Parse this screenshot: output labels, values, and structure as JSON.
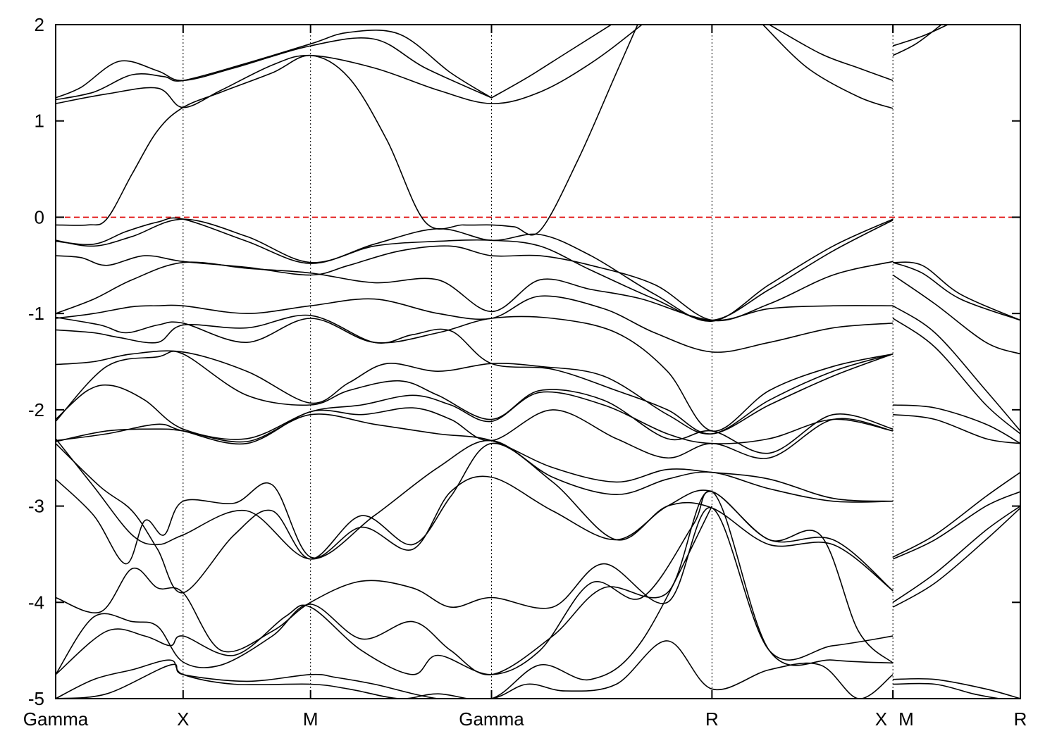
{
  "chart_data": {
    "type": "line",
    "title": "",
    "xlabel": "",
    "ylabel": "",
    "ylim": [
      -5,
      2
    ],
    "yticks": [
      "2",
      "1",
      "0",
      "-1",
      "-2",
      "-3",
      "-4",
      "-5"
    ],
    "ytick_values": [
      2,
      1,
      0,
      -1,
      -2,
      -3,
      -4,
      -5
    ],
    "kpath_labels": [
      "Gamma",
      "X",
      "M",
      "Gamma",
      "R",
      "X",
      "M",
      "R"
    ],
    "kpath_positions": [
      0,
      1,
      2,
      3.42,
      5.15,
      6.57,
      6.57,
      7.57
    ],
    "xlim": [
      0,
      7.57
    ],
    "path_break_after": "X",
    "fermi_level": 0,
    "fermi_color": "#e00000",
    "band_color": "#000000",
    "grid": false,
    "series": [
      {
        "x": [
          0,
          0.2,
          0.5,
          0.8,
          1.0,
          1.4,
          2.0,
          2.5,
          2.9,
          3.42
        ],
        "values": [
          1.24,
          1.35,
          1.62,
          1.52,
          1.42,
          1.55,
          1.78,
          1.85,
          1.55,
          1.24
        ]
      },
      {
        "x": [
          0,
          0.3,
          0.6,
          0.85,
          1.0,
          1.5,
          2.0,
          2.3,
          2.7,
          3.1,
          3.42
        ],
        "values": [
          1.22,
          1.3,
          1.48,
          1.46,
          1.42,
          1.6,
          1.8,
          1.92,
          1.9,
          1.5,
          1.24
        ]
      },
      {
        "x": [
          0,
          0.4,
          0.8,
          1.0,
          1.3,
          1.7,
          2.0,
          2.5,
          3.0,
          3.42,
          3.8,
          4.2,
          4.6,
          5.15
        ],
        "values": [
          1.18,
          1.28,
          1.34,
          1.14,
          1.32,
          1.58,
          1.68,
          1.55,
          1.32,
          1.18,
          1.3,
          1.6,
          2.0,
          2.6
        ]
      },
      {
        "x": [
          0,
          0.25,
          0.4,
          0.6,
          0.8,
          1.0,
          1.3,
          1.7,
          2.0,
          2.3,
          2.6,
          2.9,
          3.2,
          3.42,
          3.6,
          3.8,
          4.1,
          4.4,
          4.6
        ],
        "values": [
          -0.08,
          -0.08,
          -0.02,
          0.45,
          0.9,
          1.14,
          1.3,
          1.5,
          1.68,
          1.45,
          0.8,
          -0.05,
          -0.08,
          -0.08,
          -0.1,
          -0.14,
          0.6,
          1.5,
          2.1
        ]
      },
      {
        "x": [
          3.42,
          3.7,
          4.0,
          4.3,
          4.6
        ],
        "values": [
          1.24,
          1.45,
          1.7,
          1.95,
          2.2
        ]
      },
      {
        "x": [
          5.6,
          6.0,
          6.3,
          6.57
        ],
        "values": [
          2.0,
          1.7,
          1.55,
          1.42
        ]
      },
      {
        "x": [
          5.55,
          5.9,
          6.3,
          6.57
        ],
        "values": [
          2.0,
          1.55,
          1.25,
          1.13
        ]
      },
      {
        "x": [
          6.57,
          6.8,
          7.0
        ],
        "values": [
          1.78,
          1.88,
          2.0
        ]
      },
      {
        "x": [
          6.57,
          6.75,
          6.95
        ],
        "values": [
          1.68,
          1.8,
          2.0
        ]
      },
      {
        "x": [
          0,
          0.3,
          0.55,
          0.8,
          1.0,
          1.5,
          2.0,
          2.5,
          3.0,
          3.42,
          3.8,
          4.2,
          4.7,
          5.15,
          5.6,
          6.1,
          6.57
        ],
        "values": [
          -0.25,
          -0.28,
          -0.15,
          -0.05,
          -0.02,
          -0.25,
          -0.48,
          -0.28,
          -0.12,
          -0.24,
          -0.18,
          -0.4,
          -0.8,
          -1.08,
          -0.7,
          -0.3,
          -0.02
        ]
      },
      {
        "x": [
          0,
          0.3,
          0.6,
          1.0,
          1.5,
          2.0,
          2.5,
          3.0,
          3.42,
          3.8,
          4.2,
          4.7,
          5.15,
          5.6,
          6.1,
          6.57
        ],
        "values": [
          -0.24,
          -0.3,
          -0.2,
          -0.02,
          -0.2,
          -0.47,
          -0.3,
          -0.25,
          -0.24,
          -0.3,
          -0.55,
          -0.85,
          -1.07,
          -0.75,
          -0.35,
          -0.03
        ]
      },
      {
        "x": [
          0,
          0.2,
          0.4,
          0.7,
          1.0,
          1.5,
          2.0,
          2.3,
          2.7,
          3.1,
          3.42,
          3.8,
          4.2,
          4.7,
          5.15,
          5.6,
          6.1,
          6.57
        ],
        "values": [
          -0.4,
          -0.42,
          -0.5,
          -0.4,
          -0.46,
          -0.52,
          -0.6,
          -0.5,
          -0.35,
          -0.3,
          -0.4,
          -0.4,
          -0.5,
          -0.7,
          -1.07,
          -0.9,
          -0.6,
          -0.46
        ]
      },
      {
        "x": [
          0,
          0.3,
          0.6,
          1.0,
          1.5,
          2.0,
          2.5,
          3.0,
          3.42,
          3.8,
          4.2,
          4.6,
          5.15,
          5.6,
          6.1,
          6.57
        ],
        "values": [
          -1.0,
          -0.85,
          -0.65,
          -0.47,
          -0.53,
          -0.58,
          -0.68,
          -0.65,
          -0.98,
          -0.65,
          -0.75,
          -0.85,
          -1.07,
          -0.95,
          -0.92,
          -0.92
        ]
      },
      {
        "x": [
          0,
          0.3,
          0.6,
          0.8,
          1.0,
          1.5,
          2.0,
          2.5,
          3.0,
          3.42,
          3.8,
          4.3,
          4.7,
          5.15,
          5.6,
          6.1,
          6.57
        ],
        "values": [
          -1.05,
          -1.0,
          -0.93,
          -0.92,
          -0.92,
          -1.0,
          -0.92,
          -0.85,
          -1.0,
          -1.05,
          -0.82,
          -0.95,
          -1.2,
          -1.4,
          -1.3,
          -1.15,
          -1.1
        ]
      },
      {
        "x": [
          0,
          0.35,
          0.55,
          0.8,
          1.0,
          1.5,
          2.0,
          2.5,
          3.0,
          3.42,
          3.9,
          4.4,
          4.8,
          5.15,
          5.6,
          6.1,
          6.57
        ],
        "values": [
          -1.04,
          -1.12,
          -1.2,
          -1.12,
          -1.1,
          -1.3,
          -1.05,
          -1.3,
          -1.2,
          -1.05,
          -1.05,
          -1.2,
          -1.6,
          -2.22,
          -1.8,
          -1.55,
          -1.42
        ]
      },
      {
        "x": [
          0,
          0.3,
          0.5,
          0.8,
          1.0,
          1.5,
          2.0,
          2.5,
          2.8,
          3.1,
          3.42,
          3.9,
          4.4,
          4.8,
          5.15,
          5.6,
          6.1,
          6.57
        ],
        "values": [
          -1.17,
          -1.2,
          -1.25,
          -1.3,
          -1.12,
          -1.15,
          -1.02,
          -1.3,
          -1.22,
          -1.18,
          -1.52,
          -1.58,
          -1.8,
          -2.0,
          -2.25,
          -1.9,
          -1.6,
          -1.42
        ]
      },
      {
        "x": [
          0,
          0.3,
          0.6,
          1.0,
          1.5,
          2.0,
          2.3,
          2.6,
          3.0,
          3.42,
          3.8,
          4.3,
          4.8,
          5.15,
          5.6,
          6.1,
          6.57
        ],
        "values": [
          -1.53,
          -1.5,
          -1.42,
          -1.4,
          -1.6,
          -1.93,
          -1.72,
          -1.52,
          -1.6,
          -1.52,
          -1.55,
          -1.65,
          -2.05,
          -2.25,
          -1.95,
          -1.65,
          -1.42
        ]
      },
      {
        "x": [
          0,
          0.25,
          0.45,
          0.7,
          1.0,
          1.5,
          2.0,
          2.4,
          2.8,
          3.1,
          3.42,
          3.8,
          4.3,
          4.8,
          5.15,
          5.6,
          6.1,
          6.57
        ],
        "values": [
          -2.1,
          -1.8,
          -1.75,
          -1.9,
          -2.2,
          -2.3,
          -2.02,
          -1.95,
          -1.85,
          -1.95,
          -2.12,
          -1.82,
          -1.95,
          -2.25,
          -2.35,
          -2.3,
          -2.1,
          -2.22
        ]
      },
      {
        "x": [
          0,
          0.4,
          0.8,
          1.0,
          1.5,
          2.0,
          2.3,
          2.7,
          3.0,
          3.42,
          3.8,
          4.3,
          4.8,
          5.15,
          5.6,
          6.1,
          6.57
        ],
        "values": [
          -2.12,
          -1.55,
          -1.45,
          -1.42,
          -1.85,
          -1.95,
          -1.8,
          -1.7,
          -1.85,
          -2.1,
          -1.8,
          -1.9,
          -2.3,
          -2.22,
          -2.45,
          -2.05,
          -2.2
        ]
      },
      {
        "x": [
          0,
          0.4,
          0.8,
          1.0,
          1.5,
          2.0,
          2.4,
          2.8,
          3.1,
          3.42,
          3.9,
          4.4,
          4.8,
          5.15,
          5.6,
          6.1,
          6.57
        ],
        "values": [
          -2.32,
          -2.25,
          -2.15,
          -2.22,
          -2.35,
          -2.02,
          -2.05,
          -1.98,
          -2.1,
          -2.32,
          -2.0,
          -2.3,
          -2.5,
          -2.35,
          -2.5,
          -2.1,
          -2.22
        ]
      },
      {
        "x": [
          0,
          0.4,
          0.8,
          1.0,
          1.5,
          2.0,
          2.5,
          3.0,
          3.42,
          3.9,
          4.4,
          4.8,
          5.15,
          5.6,
          6.1,
          6.57
        ],
        "values": [
          -2.33,
          -2.22,
          -2.2,
          -2.22,
          -2.33,
          -2.05,
          -2.15,
          -2.25,
          -2.32,
          -2.6,
          -2.75,
          -2.62,
          -2.65,
          -2.72,
          -2.92,
          -2.95
        ]
      },
      {
        "x": [
          0,
          0.3,
          0.6,
          0.8,
          1.0,
          1.5,
          2.0,
          2.5,
          3.0,
          3.42,
          3.9,
          4.4,
          4.8,
          5.15,
          5.6,
          6.1,
          6.57
        ],
        "values": [
          -2.3,
          -2.8,
          -3.3,
          -3.4,
          -3.3,
          -3.05,
          -3.55,
          -3.1,
          -2.6,
          -2.32,
          -2.7,
          -2.88,
          -2.72,
          -2.65,
          -2.82,
          -2.95,
          -2.95
        ]
      },
      {
        "x": [
          0,
          0.3,
          0.55,
          0.7,
          0.85,
          1.0,
          1.4,
          1.7,
          2.0,
          2.4,
          2.8,
          3.1,
          3.42,
          3.9,
          4.4,
          4.8,
          5.15,
          5.6,
          6.1,
          6.57
        ],
        "values": [
          -2.72,
          -3.1,
          -3.6,
          -3.15,
          -3.3,
          -2.95,
          -2.97,
          -2.78,
          -3.53,
          -3.22,
          -3.45,
          -2.85,
          -2.7,
          -3.05,
          -3.35,
          -3.0,
          -2.85,
          -3.35,
          -3.35,
          -3.88
        ]
      },
      {
        "x": [
          0,
          0.35,
          0.6,
          0.8,
          1.0,
          1.4,
          1.7,
          2.0,
          2.4,
          2.8,
          3.1,
          3.42,
          3.9,
          4.4,
          4.8,
          5.15,
          5.6,
          6.1,
          6.57
        ],
        "values": [
          -2.35,
          -2.8,
          -3.05,
          -3.45,
          -3.9,
          -3.3,
          -3.05,
          -3.55,
          -3.1,
          -3.4,
          -2.9,
          -2.35,
          -2.75,
          -3.35,
          -3.0,
          -3.02,
          -3.4,
          -3.4,
          -3.88
        ]
      },
      {
        "x": [
          0,
          0.35,
          0.6,
          0.8,
          1.0,
          1.3,
          1.7,
          2.0,
          2.4,
          2.8,
          3.1,
          3.42,
          3.9,
          4.3,
          4.8,
          5.15,
          5.6,
          6.1,
          6.57
        ],
        "values": [
          -3.95,
          -4.1,
          -3.65,
          -3.85,
          -3.9,
          -4.5,
          -4.3,
          -4.0,
          -3.78,
          -3.85,
          -4.05,
          -3.95,
          -4.05,
          -3.6,
          -4.0,
          -3.02,
          -4.5,
          -4.45,
          -4.35
        ]
      },
      {
        "x": [
          0,
          0.3,
          0.6,
          0.8,
          1.0,
          1.3,
          1.7,
          2.0,
          2.4,
          2.8,
          3.1,
          3.42,
          3.9,
          4.3,
          4.8,
          5.15,
          5.6,
          6.1,
          6.57
        ],
        "values": [
          -4.75,
          -4.15,
          -4.2,
          -4.25,
          -4.62,
          -4.65,
          -4.35,
          -4.02,
          -4.38,
          -4.2,
          -4.5,
          -4.75,
          -4.35,
          -3.85,
          -3.9,
          -2.85,
          -4.5,
          -4.6,
          -4.63
        ]
      },
      {
        "x": [
          0,
          0.4,
          0.7,
          0.9,
          1.0,
          1.4,
          1.8,
          2.0,
          2.4,
          2.8,
          3.0,
          3.42,
          3.8,
          4.2,
          4.6,
          5.0,
          5.15,
          5.6,
          6.0,
          6.3,
          6.57
        ],
        "values": [
          -4.75,
          -4.3,
          -4.35,
          -4.45,
          -4.35,
          -4.55,
          -4.15,
          -4.05,
          -4.5,
          -4.75,
          -4.55,
          -4.75,
          -4.5,
          -3.8,
          -3.95,
          -3.2,
          -2.85,
          -3.35,
          -3.3,
          -4.3,
          -4.63
        ]
      },
      {
        "x": [
          0,
          0.3,
          0.6,
          0.9,
          1.0,
          1.4,
          2.0,
          2.3,
          2.7,
          3.0,
          3.42,
          3.8,
          4.2,
          4.6,
          5.15
        ],
        "values": [
          -5.0,
          -4.8,
          -4.7,
          -4.6,
          -4.75,
          -4.85,
          -4.85,
          -4.9,
          -5.0,
          -4.95,
          -5.0,
          -4.65,
          -4.8,
          -4.4,
          -3.0
        ]
      },
      {
        "x": [
          0,
          0.4,
          0.9,
          1.0,
          1.5,
          2.0,
          2.2,
          2.5,
          3.0,
          3.42,
          3.7,
          4.0,
          4.4,
          4.8,
          5.15,
          5.6,
          6.0,
          6.3,
          6.57
        ],
        "values": [
          -5.0,
          -4.95,
          -4.65,
          -4.75,
          -4.82,
          -4.75,
          -4.78,
          -4.85,
          -5.0,
          -5.0,
          -4.85,
          -4.92,
          -4.85,
          -4.4,
          -4.9,
          -4.7,
          -4.65,
          -5.0,
          -4.75
        ]
      },
      {
        "x": [
          6.57,
          6.8,
          7.1,
          7.57
        ],
        "values": [
          -0.47,
          -0.5,
          -0.8,
          -1.07
        ]
      },
      {
        "x": [
          6.57,
          6.8,
          7.1,
          7.57
        ],
        "values": [
          -0.47,
          -0.58,
          -0.85,
          -1.07
        ]
      },
      {
        "x": [
          6.57,
          6.9,
          7.3,
          7.57
        ],
        "values": [
          -0.6,
          -0.9,
          -1.3,
          -1.42
        ]
      },
      {
        "x": [
          6.57,
          6.9,
          7.3,
          7.57
        ],
        "values": [
          -0.92,
          -1.2,
          -1.8,
          -2.22
        ]
      },
      {
        "x": [
          6.57,
          6.9,
          7.3,
          7.57
        ],
        "values": [
          -1.05,
          -1.35,
          -1.95,
          -2.25
        ]
      },
      {
        "x": [
          6.57,
          6.9,
          7.3,
          7.57
        ],
        "values": [
          -1.95,
          -1.98,
          -2.15,
          -2.35
        ]
      },
      {
        "x": [
          6.57,
          6.9,
          7.3,
          7.57
        ],
        "values": [
          -2.05,
          -2.1,
          -2.3,
          -2.35
        ]
      },
      {
        "x": [
          6.57,
          6.9,
          7.3,
          7.57
        ],
        "values": [
          -3.53,
          -3.3,
          -2.9,
          -2.65
        ]
      },
      {
        "x": [
          6.57,
          6.9,
          7.3,
          7.57
        ],
        "values": [
          -3.55,
          -3.35,
          -3.0,
          -2.85
        ]
      },
      {
        "x": [
          6.57,
          6.9,
          7.3,
          7.57
        ],
        "values": [
          -4.0,
          -3.7,
          -3.25,
          -3.0
        ]
      },
      {
        "x": [
          6.57,
          6.9,
          7.3,
          7.57
        ],
        "values": [
          -4.05,
          -3.8,
          -3.35,
          -3.02
        ]
      },
      {
        "x": [
          6.57,
          6.9,
          7.3,
          7.57
        ],
        "values": [
          -4.8,
          -4.8,
          -4.9,
          -5.0
        ]
      },
      {
        "x": [
          6.57,
          6.9,
          7.2,
          7.4
        ],
        "values": [
          -4.85,
          -4.85,
          -4.95,
          -5.0
        ]
      }
    ]
  }
}
